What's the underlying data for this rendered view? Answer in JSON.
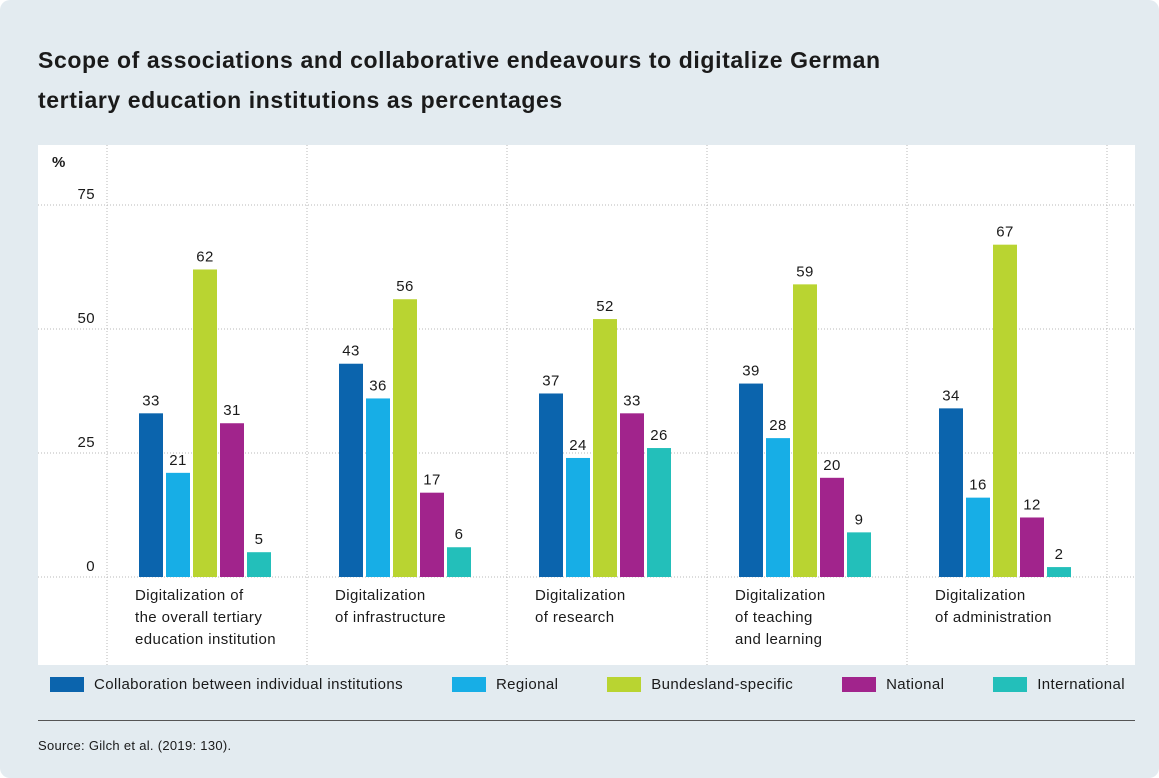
{
  "chart_data": {
    "type": "bar",
    "title": "Scope of associations and collaborative endeavours to digitalize German\ntertiary education institutions as percentages",
    "ylabel": "%",
    "categories": [
      "Digitalization of\nthe overall tertiary\neducation institution",
      "Digitalization\nof infrastructure",
      "Digitalization\nof research",
      "Digitalization\nof teaching\nand learning",
      "Digitalization\nof administration"
    ],
    "series": [
      {
        "name": "Collaboration between individual institutions",
        "color": "#0b64ad",
        "values": [
          33,
          43,
          37,
          39,
          34
        ]
      },
      {
        "name": "Regional",
        "color": "#17aee6",
        "values": [
          21,
          36,
          24,
          28,
          16
        ]
      },
      {
        "name": "Bundesland-specific",
        "color": "#b9d431",
        "values": [
          62,
          56,
          52,
          59,
          67
        ]
      },
      {
        "name": "National",
        "color": "#a1248c",
        "values": [
          31,
          17,
          33,
          20,
          12
        ]
      },
      {
        "name": "International",
        "color": "#23bfba",
        "values": [
          5,
          6,
          26,
          9,
          2
        ]
      }
    ],
    "ylim": [
      0,
      75
    ],
    "yticks": [
      0,
      25,
      50,
      75
    ],
    "grid": true,
    "source": "Source: Gilch et al. (2019: 130)."
  }
}
